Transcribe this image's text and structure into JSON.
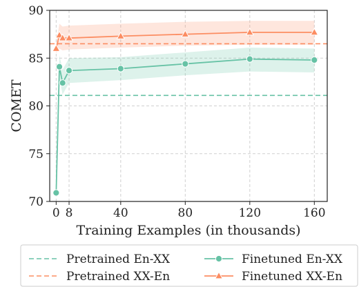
{
  "chart_data": {
    "type": "line",
    "xlabel": "Training Examples (in thousands)",
    "ylabel": "COMET",
    "xlim": [
      -4,
      168
    ],
    "ylim": [
      70,
      90
    ],
    "xticks": [
      0,
      8,
      40,
      80,
      120,
      160
    ],
    "xtick_labels": [
      "0",
      "8",
      "40",
      "80",
      "120",
      "160"
    ],
    "yticks": [
      70,
      75,
      80,
      85,
      90
    ],
    "ytick_labels": [
      "70",
      "75",
      "80",
      "85",
      "90"
    ],
    "grid": true,
    "legend_position": "bottom",
    "reference_lines": [
      {
        "name": "Pretrained En-XX",
        "value": 81.1,
        "color": "#66c2a5",
        "style": "dashed"
      },
      {
        "name": "Pretrained XX-En",
        "value": 86.5,
        "color": "#fc8d62",
        "style": "dashed"
      }
    ],
    "series": [
      {
        "name": "Finetuned En-XX",
        "color": "#66c2a5",
        "marker": "circle",
        "x": [
          0,
          2,
          4,
          8,
          40,
          80,
          120,
          160
        ],
        "y": [
          70.9,
          84.1,
          82.4,
          83.7,
          83.9,
          84.4,
          84.9,
          84.8
        ],
        "ci_low": [
          70.9,
          82.8,
          81.2,
          82.4,
          82.7,
          83.2,
          83.6,
          83.5
        ],
        "ci_high": [
          70.9,
          85.3,
          83.8,
          85.0,
          85.1,
          85.6,
          86.1,
          86.0
        ]
      },
      {
        "name": "Finetuned XX-En",
        "color": "#fc8d62",
        "marker": "triangle",
        "x": [
          0,
          2,
          4,
          8,
          40,
          80,
          120,
          160
        ],
        "y": [
          86.0,
          87.4,
          87.1,
          87.1,
          87.3,
          87.5,
          87.7,
          87.7
        ],
        "ci_low": [
          85.5,
          86.0,
          85.8,
          85.9,
          86.1,
          86.3,
          86.4,
          86.4
        ],
        "ci_high": [
          86.5,
          88.6,
          88.3,
          88.4,
          88.6,
          88.8,
          88.9,
          88.9
        ]
      }
    ]
  }
}
